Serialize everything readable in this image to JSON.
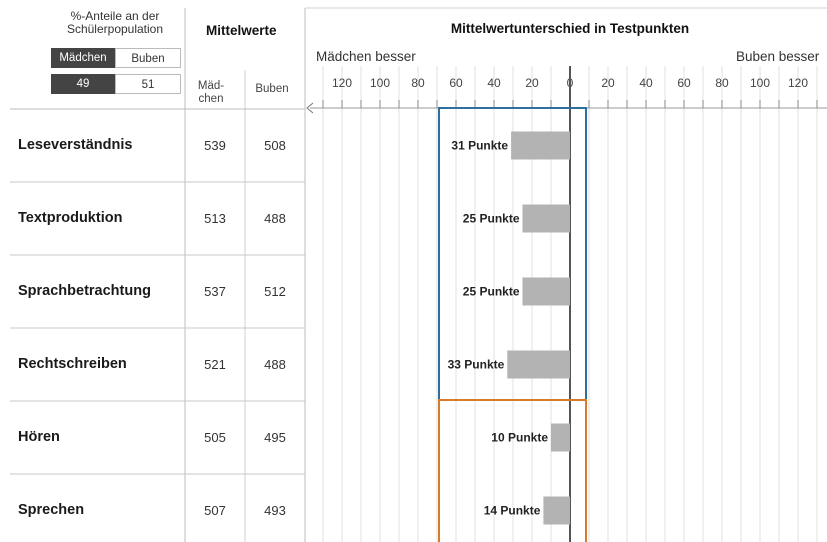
{
  "population": {
    "title": "%-Anteile an der Schülerpopulation",
    "girls_label": "Mädchen",
    "boys_label": "Buben",
    "girls_value": "49",
    "boys_value": "51"
  },
  "headers": {
    "means": "Mittelwerte",
    "difference": "Mittelwertunterschied in Testpunkten",
    "girls_col": "Mäd-\nchen",
    "boys_col": "Buben",
    "girls_better": "Mädchen besser",
    "boys_better": "Buben besser"
  },
  "chart_data": {
    "type": "bar",
    "orientation": "horizontal",
    "title": "Mittelwertunterschied in Testpunkten",
    "xlim": [
      -140,
      140
    ],
    "tick_labels": [
      "120",
      "100",
      "80",
      "60",
      "40",
      "20",
      "0",
      "20",
      "40",
      "60",
      "80",
      "100",
      "120"
    ],
    "tick_values": [
      -120,
      -100,
      -80,
      -60,
      -40,
      -20,
      0,
      20,
      40,
      60,
      80,
      100,
      120
    ],
    "categories": [
      "Leseverständnis",
      "Textproduktion",
      "Sprachbetrachtung",
      "Rechtschreiben",
      "Hören",
      "Sprechen"
    ],
    "girls_means": [
      "539",
      "513",
      "537",
      "521",
      "505",
      "507"
    ],
    "boys_means": [
      "508",
      "488",
      "512",
      "488",
      "495",
      "493"
    ],
    "values": [
      -31,
      -25,
      -25,
      -33,
      -10,
      -14
    ],
    "bar_labels": [
      "31 Punkte",
      "25 Punkte",
      "25 Punkte",
      "33 Punkte",
      "10 Punkte",
      "14 Punkte"
    ],
    "groups": [
      {
        "rows": [
          0,
          1,
          2,
          3
        ],
        "color": "#2f6fa0"
      },
      {
        "rows": [
          4,
          5
        ],
        "color": "#d97a2b"
      }
    ],
    "bar_color": "#b3b3b3",
    "grid": true
  }
}
